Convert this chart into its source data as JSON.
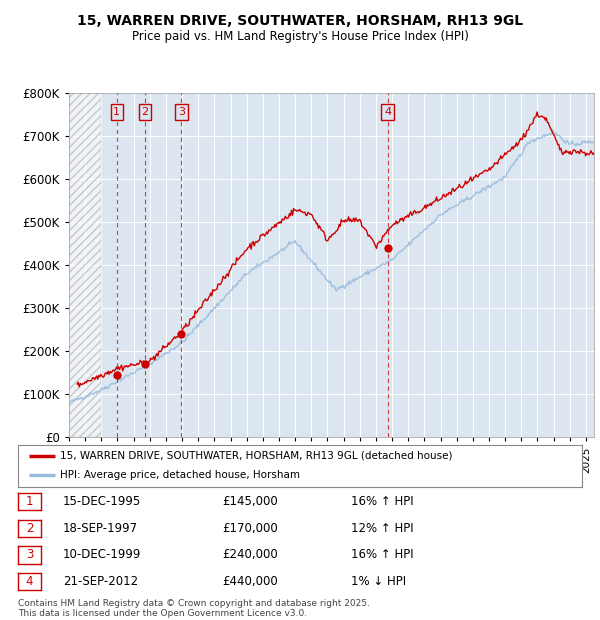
{
  "title": "15, WARREN DRIVE, SOUTHWATER, HORSHAM, RH13 9GL",
  "subtitle": "Price paid vs. HM Land Registry's House Price Index (HPI)",
  "fig_bg": "#ffffff",
  "chart_bg": "#dce6f0",
  "ylim": [
    0,
    800000
  ],
  "yticks": [
    0,
    100000,
    200000,
    300000,
    400000,
    500000,
    600000,
    700000,
    800000
  ],
  "ytick_labels": [
    "£0",
    "£100K",
    "£200K",
    "£300K",
    "£400K",
    "£500K",
    "£600K",
    "£700K",
    "£800K"
  ],
  "xmin": 1993,
  "xmax": 2025.5,
  "transactions": [
    {
      "num": 1,
      "date": "15-DEC-1995",
      "year": 1995.96,
      "price": 145000,
      "pct": "16%",
      "dir": "↑"
    },
    {
      "num": 2,
      "date": "18-SEP-1997",
      "year": 1997.71,
      "price": 170000,
      "pct": "12%",
      "dir": "↑"
    },
    {
      "num": 3,
      "date": "10-DEC-1999",
      "year": 1999.96,
      "price": 240000,
      "pct": "16%",
      "dir": "↑"
    },
    {
      "num": 4,
      "date": "21-SEP-2012",
      "year": 2012.72,
      "price": 440000,
      "pct": "1%",
      "dir": "↓"
    }
  ],
  "legend_label_red": "15, WARREN DRIVE, SOUTHWATER, HORSHAM, RH13 9GL (detached house)",
  "legend_label_blue": "HPI: Average price, detached house, Horsham",
  "footnote": "Contains HM Land Registry data © Crown copyright and database right 2025.\nThis data is licensed under the Open Government Licence v3.0.",
  "red_color": "#cc0000",
  "blue_color": "#99bbdd",
  "hatch_end": 1995.0
}
